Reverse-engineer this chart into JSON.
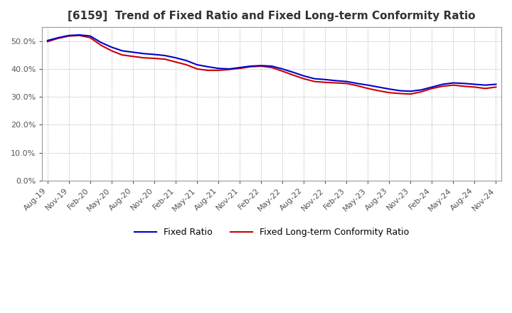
{
  "title": "[6159]  Trend of Fixed Ratio and Fixed Long-term Conformity Ratio",
  "fixed_ratio": [
    50.2,
    51.2,
    52.0,
    52.2,
    51.8,
    49.5,
    47.8,
    46.5,
    46.0,
    45.5,
    45.2,
    44.8,
    44.0,
    43.0,
    41.5,
    40.8,
    40.2,
    40.0,
    40.5,
    41.0,
    41.2,
    41.0,
    40.0,
    38.8,
    37.5,
    36.5,
    36.2,
    35.8,
    35.5,
    34.8,
    34.2,
    33.5,
    32.8,
    32.2,
    32.0,
    32.5,
    33.5,
    34.5,
    35.0,
    34.8,
    34.5,
    34.2,
    34.5
  ],
  "fixed_lt_conformity": [
    49.8,
    51.0,
    51.8,
    52.0,
    51.2,
    48.5,
    46.5,
    45.0,
    44.5,
    44.0,
    43.8,
    43.5,
    42.5,
    41.5,
    40.0,
    39.5,
    39.5,
    39.8,
    40.2,
    40.8,
    41.0,
    40.5,
    39.2,
    37.8,
    36.5,
    35.5,
    35.2,
    35.0,
    34.8,
    34.0,
    33.0,
    32.2,
    31.5,
    31.2,
    31.0,
    31.8,
    33.0,
    33.8,
    34.2,
    33.8,
    33.5,
    33.0,
    33.5
  ],
  "x_labels": [
    "Aug-19",
    "Nov-19",
    "Feb-20",
    "May-20",
    "Aug-20",
    "Nov-20",
    "Feb-21",
    "May-21",
    "Aug-21",
    "Nov-21",
    "Feb-22",
    "May-22",
    "Aug-22",
    "Nov-22",
    "Feb-23",
    "May-23",
    "Aug-23",
    "Nov-23",
    "Feb-24",
    "May-24",
    "Aug-24",
    "Nov-24"
  ],
  "fixed_ratio_color": "#0000cc",
  "fixed_lt_color": "#cc0000",
  "background_color": "#ffffff",
  "plot_bg_color": "#ffffff",
  "grid_color": "#aaaaaa",
  "ylim": [
    0.0,
    55.0
  ],
  "yticks": [
    0.0,
    10.0,
    20.0,
    30.0,
    40.0,
    50.0
  ],
  "legend_labels": [
    "Fixed Ratio",
    "Fixed Long-term Conformity Ratio"
  ]
}
